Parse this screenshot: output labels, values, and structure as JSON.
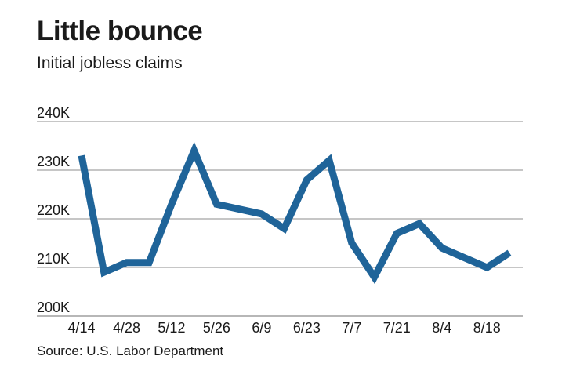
{
  "header": {
    "title": "Little bounce",
    "subtitle": "Initial jobless claims"
  },
  "footer": {
    "source": "Source: U.S. Labor Department"
  },
  "colors": {
    "line": "#1f6499",
    "grid": "#8c8c8c",
    "text": "#1a1a1a"
  },
  "chart_data": {
    "type": "line",
    "title": "Little bounce",
    "subtitle": "Initial jobless claims",
    "ylim": [
      200000,
      240000
    ],
    "y_ticks": [
      200000,
      210000,
      220000,
      230000,
      240000
    ],
    "y_tick_labels": [
      "200K",
      "210K",
      "220K",
      "230K",
      "240K"
    ],
    "x_tick_labels": [
      "4/14",
      "4/28",
      "5/12",
      "5/26",
      "6/9",
      "6/23",
      "7/7",
      "7/21",
      "8/4",
      "8/18"
    ],
    "grid": true,
    "x": [
      "4/14",
      "4/21",
      "4/28",
      "5/5",
      "5/12",
      "5/19",
      "5/26",
      "6/2",
      "6/9",
      "6/16",
      "6/23",
      "6/30",
      "7/7",
      "7/14",
      "7/21",
      "7/28",
      "8/4",
      "8/11",
      "8/18",
      "8/25"
    ],
    "series": [
      {
        "values": [
          233000,
          209000,
          211000,
          211000,
          223000,
          234000,
          223000,
          222000,
          221000,
          218000,
          228000,
          232000,
          215000,
          208000,
          217000,
          219000,
          214000,
          212000,
          210000,
          213000
        ]
      }
    ]
  }
}
